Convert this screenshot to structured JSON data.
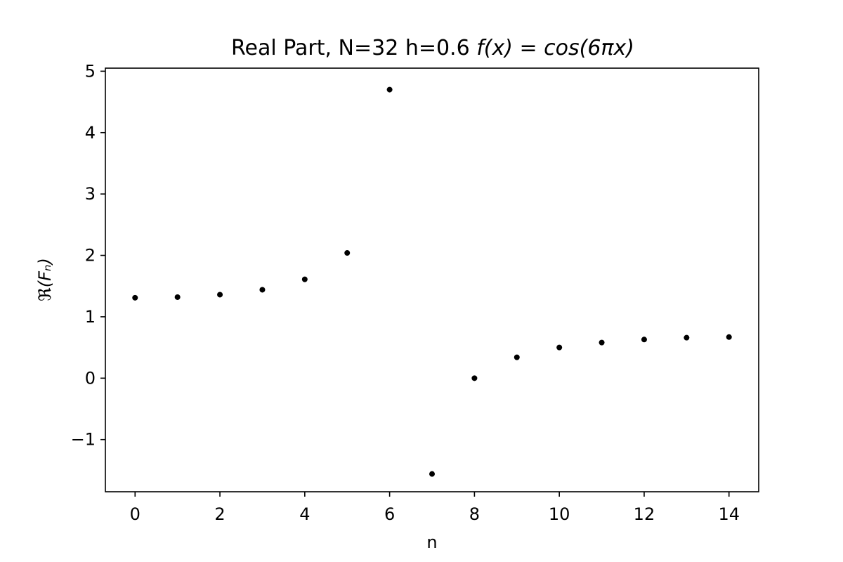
{
  "chart_data": {
    "type": "scatter",
    "title": {
      "prefix": "Real Part, N=32  h=0.6 ",
      "formula": "f(x) = cos(6πx)"
    },
    "xlabel": "n",
    "ylabel": "ℜ(Fₙ)",
    "xlim": [
      -0.7,
      14.7
    ],
    "ylim": [
      -1.85,
      5.05
    ],
    "xticks": [
      0,
      2,
      4,
      6,
      8,
      10,
      12,
      14
    ],
    "yticks": [
      -1,
      0,
      1,
      2,
      3,
      4,
      5
    ],
    "ytick_labels": [
      "−1",
      "0",
      "1",
      "2",
      "3",
      "4",
      "5"
    ],
    "grid": false,
    "marker_color": "#000000",
    "series": [
      {
        "x": [
          0,
          1,
          2,
          3,
          4,
          5,
          6,
          7,
          8,
          9,
          10,
          11,
          12,
          13,
          14
        ],
        "y": [
          1.31,
          1.32,
          1.36,
          1.44,
          1.61,
          2.04,
          4.7,
          -1.56,
          0.0,
          0.34,
          0.5,
          0.58,
          0.63,
          0.66,
          0.67
        ]
      }
    ]
  }
}
